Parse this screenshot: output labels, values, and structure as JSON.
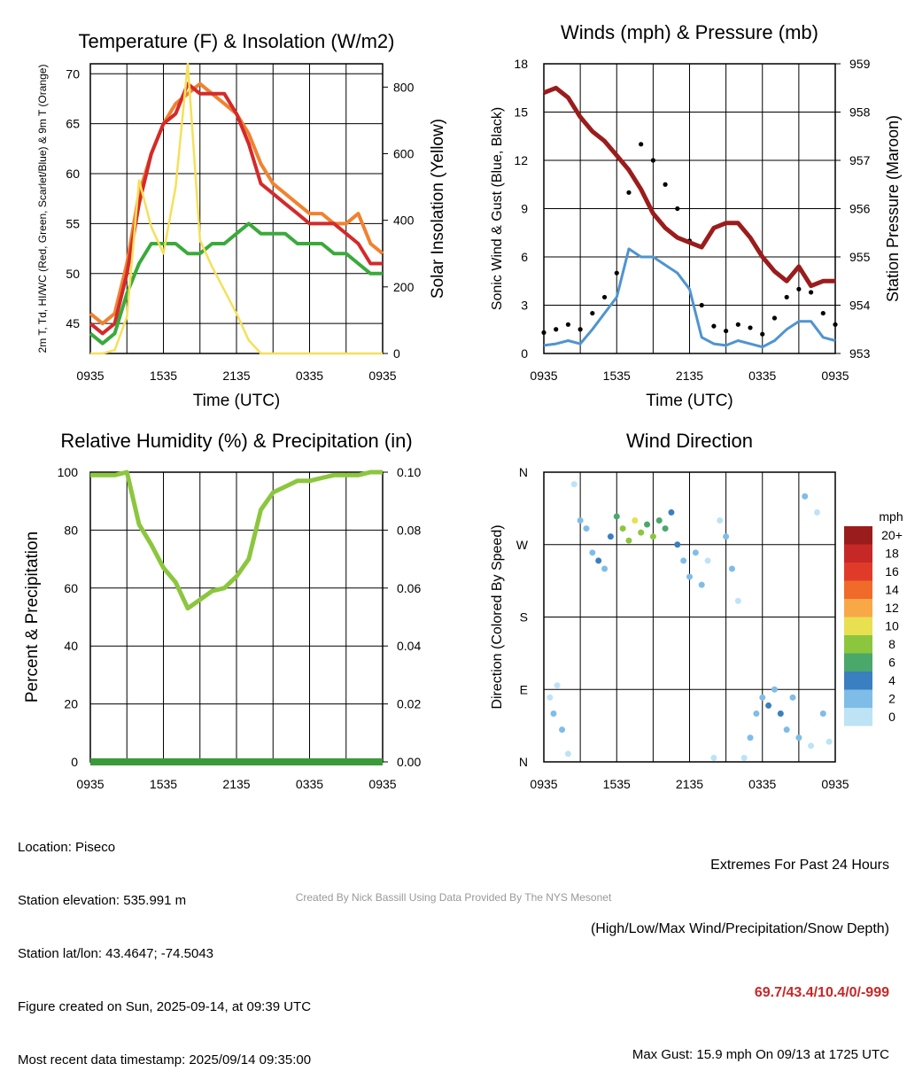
{
  "chart_data": [
    {
      "type": "line",
      "title": "Temperature (F) & Insolation (W/m2)",
      "xlabel": "Time (UTC)",
      "ylabel_left": "2m T, Td, HI/WC (Red, Green, Scarlet/Blue) & 9m T (Orange)",
      "ylabel_right": "Solar Insolation (Yellow)",
      "x_ticks": [
        "0935",
        "1535",
        "2135",
        "0335",
        "0935"
      ],
      "ylim_left": [
        42,
        71
      ],
      "yticks_left": [
        45,
        50,
        55,
        60,
        65,
        70
      ],
      "ylim_right": [
        0,
        870
      ],
      "yticks_right": [
        0,
        200,
        400,
        600,
        800
      ],
      "colors": {
        "t2m": "#d42a2a",
        "t9m": "#f08230",
        "td": "#3aaa3a",
        "solar": "#f5e05a"
      },
      "x_hours": [
        0,
        1,
        2,
        3,
        4,
        5,
        6,
        7,
        8,
        9,
        10,
        11,
        12,
        13,
        14,
        15,
        16,
        17,
        18,
        19,
        20,
        21,
        22,
        23,
        24
      ],
      "series": [
        {
          "key": "t9m",
          "values": [
            46,
            45,
            46,
            51,
            58,
            62,
            65,
            67,
            68,
            69,
            68,
            67,
            66,
            64,
            61,
            59,
            58,
            57,
            56,
            56,
            55,
            55,
            56,
            53,
            52
          ]
        },
        {
          "key": "t2m",
          "values": [
            45,
            44,
            45,
            50,
            57,
            62,
            65,
            66,
            69,
            68,
            68,
            68,
            66,
            63,
            59,
            58,
            57,
            56,
            55,
            55,
            55,
            54,
            53,
            51,
            51
          ]
        },
        {
          "key": "td",
          "values": [
            44,
            43,
            44,
            48,
            51,
            53,
            53,
            53,
            52,
            52,
            53,
            53,
            54,
            55,
            54,
            54,
            54,
            53,
            53,
            53,
            52,
            52,
            51,
            50,
            50
          ]
        },
        {
          "key": "solar",
          "values": [
            0,
            0,
            10,
            110,
            520,
            380,
            300,
            500,
            870,
            340,
            260,
            190,
            120,
            40,
            0,
            0,
            0,
            0,
            0,
            0,
            0,
            0,
            0,
            0,
            0
          ]
        }
      ]
    },
    {
      "type": "line",
      "title": "Winds (mph) & Pressure (mb)",
      "xlabel": "Time (UTC)",
      "ylabel_left": "Sonic Wind & Gust (Blue, Black)",
      "ylabel_right": "Station Pressure (Maroon)",
      "x_ticks": [
        "0935",
        "1535",
        "2135",
        "0335",
        "0935"
      ],
      "ylim_left": [
        0,
        18
      ],
      "yticks_left": [
        0,
        3,
        6,
        9,
        12,
        15,
        18
      ],
      "ylim_right": [
        953,
        959
      ],
      "yticks_right": [
        953,
        954,
        955,
        956,
        957,
        958,
        959
      ],
      "colors": {
        "wind": "#4f94d0",
        "gust": "#000000",
        "pressure": "#9b1c1c"
      },
      "x_hours": [
        0,
        1,
        2,
        3,
        4,
        5,
        6,
        7,
        8,
        9,
        10,
        11,
        12,
        13,
        14,
        15,
        16,
        17,
        18,
        19,
        20,
        21,
        22,
        23,
        24
      ],
      "series": [
        {
          "key": "wind",
          "values": [
            0.5,
            0.6,
            0.8,
            0.6,
            1.5,
            2.5,
            3.5,
            6.5,
            6,
            6,
            5.5,
            5,
            4,
            1,
            0.6,
            0.5,
            0.8,
            0.6,
            0.4,
            0.8,
            1.5,
            2,
            2,
            1,
            0.8
          ]
        },
        {
          "key": "gust",
          "values": [
            1.3,
            1.5,
            1.8,
            1.5,
            2.5,
            3.5,
            5,
            10,
            13,
            12,
            10.5,
            9,
            7,
            3,
            1.7,
            1.4,
            1.8,
            1.6,
            1.2,
            2.2,
            3.5,
            4,
            3.8,
            2.5,
            1.8
          ]
        },
        {
          "key": "pressure",
          "values": [
            958.4,
            958.5,
            958.3,
            957.9,
            957.6,
            957.4,
            957.1,
            956.8,
            956.4,
            955.9,
            955.6,
            955.4,
            955.3,
            955.2,
            955.6,
            955.7,
            955.7,
            955.4,
            955.0,
            954.7,
            954.5,
            954.8,
            954.4,
            954.5,
            954.5
          ]
        }
      ],
      "max_gust": 15.9
    },
    {
      "type": "line",
      "title": "Relative Humidity (%) & Precipitation (in)",
      "ylabel_left": "Percent & Precipitation",
      "x_ticks": [
        "0935",
        "1535",
        "2135",
        "0335",
        "0935"
      ],
      "ylim_left": [
        0,
        100
      ],
      "yticks_left": [
        0,
        20,
        40,
        60,
        80,
        100
      ],
      "ylim_right": [
        0,
        0.1
      ],
      "yticks_right": [
        "0.00",
        "0.02",
        "0.04",
        "0.06",
        "0.08",
        "0.10"
      ],
      "colors": {
        "rh": "#8cc63f",
        "precip": "#3a9a3a"
      },
      "x_hours": [
        0,
        1,
        2,
        3,
        4,
        5,
        6,
        7,
        8,
        9,
        10,
        11,
        12,
        13,
        14,
        15,
        16,
        17,
        18,
        19,
        20,
        21,
        22,
        23,
        24
      ],
      "series": [
        {
          "key": "rh",
          "values": [
            99,
            99,
            99,
            100,
            82,
            75,
            67,
            62,
            53,
            56,
            59,
            60,
            64,
            70,
            87,
            93,
            95,
            97,
            97,
            98,
            99,
            99,
            99,
            100,
            100
          ]
        },
        {
          "key": "precip",
          "values": [
            0,
            0,
            0,
            0,
            0,
            0,
            0,
            0,
            0,
            0,
            0,
            0,
            0,
            0,
            0,
            0,
            0,
            0,
            0,
            0,
            0,
            0,
            0,
            0,
            0
          ]
        }
      ]
    },
    {
      "type": "scatter",
      "title": "Wind Direction",
      "ylabel": "Direction (Colored By Speed)",
      "x_ticks": [
        "0935",
        "1535",
        "2135",
        "0335",
        "0935"
      ],
      "y_ticks": [
        "N",
        "E",
        "S",
        "W",
        "N"
      ],
      "ylim": [
        0,
        360
      ],
      "legend_title": "mph",
      "legend_labels": [
        "20+",
        "18",
        "16",
        "14",
        "12",
        "10",
        "8",
        "6",
        "4",
        "2",
        "0"
      ],
      "legend_colors": [
        "#9b1c1c",
        "#c62828",
        "#e03b2a",
        "#f06a2a",
        "#f9a848",
        "#e8e050",
        "#8cc63f",
        "#4aa86a",
        "#3a7fc0",
        "#7fbde8",
        "#bde3f5"
      ],
      "points": [
        {
          "h": 0.5,
          "dir": 80,
          "spd": 0.5
        },
        {
          "h": 0.8,
          "dir": 60,
          "spd": 1
        },
        {
          "h": 1.1,
          "dir": 95,
          "spd": 0.5
        },
        {
          "h": 1.5,
          "dir": 40,
          "spd": 1
        },
        {
          "h": 2,
          "dir": 10,
          "spd": 0.5
        },
        {
          "h": 2.5,
          "dir": 345,
          "spd": 0.5
        },
        {
          "h": 3,
          "dir": 300,
          "spd": 1
        },
        {
          "h": 3.5,
          "dir": 290,
          "spd": 1.5
        },
        {
          "h": 4,
          "dir": 260,
          "spd": 2
        },
        {
          "h": 4.5,
          "dir": 250,
          "spd": 3
        },
        {
          "h": 5,
          "dir": 240,
          "spd": 2
        },
        {
          "h": 5.5,
          "dir": 280,
          "spd": 4
        },
        {
          "h": 6,
          "dir": 305,
          "spd": 5
        },
        {
          "h": 6.5,
          "dir": 290,
          "spd": 7
        },
        {
          "h": 7,
          "dir": 275,
          "spd": 8
        },
        {
          "h": 7.5,
          "dir": 300,
          "spd": 9
        },
        {
          "h": 8,
          "dir": 285,
          "spd": 7
        },
        {
          "h": 8.5,
          "dir": 295,
          "spd": 6
        },
        {
          "h": 9,
          "dir": 280,
          "spd": 8
        },
        {
          "h": 9.5,
          "dir": 300,
          "spd": 5
        },
        {
          "h": 10,
          "dir": 290,
          "spd": 6
        },
        {
          "h": 10.5,
          "dir": 310,
          "spd": 4
        },
        {
          "h": 11,
          "dir": 270,
          "spd": 3
        },
        {
          "h": 11.5,
          "dir": 250,
          "spd": 2
        },
        {
          "h": 12,
          "dir": 230,
          "spd": 1.5
        },
        {
          "h": 12.5,
          "dir": 260,
          "spd": 1
        },
        {
          "h": 13,
          "dir": 220,
          "spd": 1
        },
        {
          "h": 13.5,
          "dir": 250,
          "spd": 0.5
        },
        {
          "h": 14,
          "dir": 5,
          "spd": 0.5
        },
        {
          "h": 14.5,
          "dir": 300,
          "spd": 0.5
        },
        {
          "h": 15,
          "dir": 280,
          "spd": 1
        },
        {
          "h": 15.5,
          "dir": 240,
          "spd": 1
        },
        {
          "h": 16,
          "dir": 200,
          "spd": 0.5
        },
        {
          "h": 16.5,
          "dir": 5,
          "spd": 0.5
        },
        {
          "h": 17,
          "dir": 30,
          "spd": 1
        },
        {
          "h": 17.5,
          "dir": 60,
          "spd": 2
        },
        {
          "h": 18,
          "dir": 80,
          "spd": 1.5
        },
        {
          "h": 18.5,
          "dir": 70,
          "spd": 3
        },
        {
          "h": 19,
          "dir": 90,
          "spd": 2
        },
        {
          "h": 19.5,
          "dir": 60,
          "spd": 4
        },
        {
          "h": 20,
          "dir": 40,
          "spd": 2
        },
        {
          "h": 20.5,
          "dir": 80,
          "spd": 1
        },
        {
          "h": 21,
          "dir": 30,
          "spd": 1
        },
        {
          "h": 21.5,
          "dir": 330,
          "spd": 1
        },
        {
          "h": 22,
          "dir": 20,
          "spd": 0.5
        },
        {
          "h": 22.5,
          "dir": 310,
          "spd": 0.5
        },
        {
          "h": 23,
          "dir": 60,
          "spd": 1
        },
        {
          "h": 23.5,
          "dir": 25,
          "spd": 0.5
        }
      ]
    }
  ],
  "info": {
    "location": "Location: Piseco",
    "elevation": "Station elevation: 535.991 m",
    "latlon": "Station lat/lon: 43.4647; -74.5043",
    "created": "Figure created on Sun, 2025-09-14, at 09:39 UTC",
    "recent": "Most recent data timestamp: 2025/09/14 09:35:00"
  },
  "extremes": {
    "heading": "Extremes For Past 24 Hours",
    "subheading": "(High/Low/Max Wind/Precipitation/Snow Depth)",
    "values": "69.7/43.4/10.4/0/-999",
    "max_gust": "Max Gust: 15.9 mph On 09/13 at 1725 UTC"
  },
  "credit": "Created By Nick Bassill Using Data Provided By The NYS Mesonet"
}
